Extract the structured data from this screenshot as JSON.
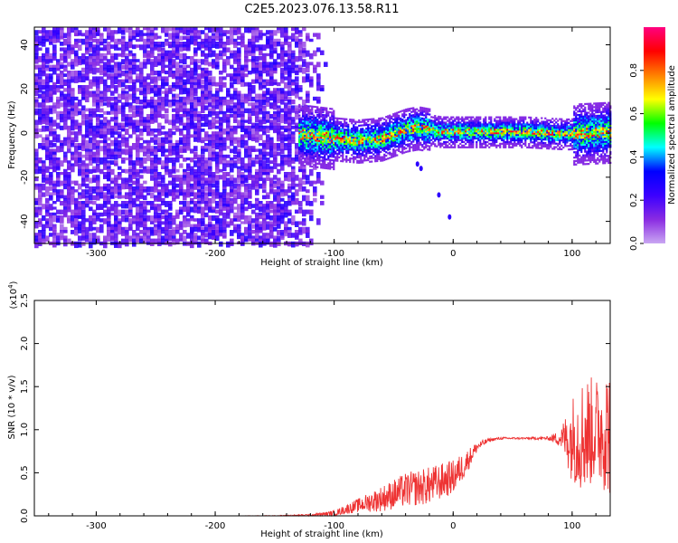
{
  "title": "C2E5.2023.076.13.58.R11",
  "chart_data": [
    {
      "type": "heatmap",
      "title": "",
      "xlabel": "Height of straight line (km)",
      "ylabel": "Frequency (Hz)",
      "xlim": [
        -352,
        132
      ],
      "ylim": [
        -50,
        48
      ],
      "xticks": [
        -300,
        -200,
        -100,
        0,
        100
      ],
      "yticks": [
        -40,
        -20,
        0,
        20,
        40
      ],
      "xticklabels": [
        "-300",
        "-200",
        "-100",
        "0",
        "100"
      ],
      "yticklabels": [
        "-40",
        "-20",
        "0",
        "20",
        "40"
      ],
      "colorbar": {
        "label": "Normalized spectral amplitude",
        "range": [
          0.0,
          1.0
        ],
        "ticks": [
          0.0,
          0.2,
          0.4,
          0.6,
          0.8
        ],
        "ticklabels": [
          "0.0",
          "0.2",
          "0.4",
          "0.6",
          "0.8"
        ],
        "colors": [
          "#c9a6f2",
          "#8a2be2",
          "#3b00ff",
          "#0000ff",
          "#00ffff",
          "#00ff00",
          "#ffff00",
          "#ff8000",
          "#ff0000",
          "#ff0080"
        ]
      },
      "noise_region_x": [
        -352,
        -108
      ],
      "noise_level": 0.15,
      "signal_region_x": [
        -130,
        132
      ],
      "signal_track": [
        [
          -130,
          0
        ],
        [
          -100,
          -2
        ],
        [
          -80,
          -3
        ],
        [
          -60,
          -2
        ],
        [
          -40,
          2
        ],
        [
          -30,
          3
        ],
        [
          -20,
          2
        ],
        [
          -10,
          1
        ],
        [
          0,
          1
        ],
        [
          20,
          1
        ],
        [
          60,
          1
        ],
        [
          95,
          0
        ],
        [
          132,
          1
        ]
      ],
      "signal_peak_amplitude": 0.95,
      "scatter_blobs": [
        [
          -30,
          -14
        ],
        [
          -27,
          -16
        ],
        [
          -12,
          -28
        ],
        [
          -3,
          -38
        ]
      ]
    },
    {
      "type": "line",
      "title": "",
      "xlabel": "Height of straight line (km)",
      "ylabel": "SNR (10 * v/v)",
      "y_multiplier_label": "(x10",
      "y_multiplier_exponent": "4",
      "xlim": [
        -352,
        132
      ],
      "ylim": [
        0.0,
        2.5
      ],
      "xticks": [
        -300,
        -200,
        -100,
        0,
        100
      ],
      "yticks": [
        0.0,
        0.5,
        1.0,
        1.5,
        2.0,
        2.5
      ],
      "xticklabels": [
        "-300",
        "-200",
        "-100",
        "0",
        "100"
      ],
      "yticklabels": [
        "0.0",
        "0.5",
        "1.0",
        "1.5",
        "2.0",
        "2.5"
      ],
      "series": [
        {
          "name": "SNR",
          "color": "#ee3333",
          "x": [
            -352,
            -300,
            -250,
            -200,
            -150,
            -120,
            -100,
            -80,
            -60,
            -40,
            -20,
            0,
            10,
            20,
            30,
            40,
            60,
            80,
            90,
            100,
            110,
            120,
            132
          ],
          "y": [
            0.0,
            0.0,
            0.0,
            0.0,
            0.0,
            0.01,
            0.03,
            0.12,
            0.2,
            0.3,
            0.35,
            0.45,
            0.6,
            0.8,
            0.88,
            0.9,
            0.9,
            0.9,
            0.9,
            0.9,
            0.95,
            1.0,
            1.0
          ],
          "spread": [
            0.0,
            0.0,
            0.0,
            0.0,
            0.005,
            0.01,
            0.03,
            0.08,
            0.15,
            0.2,
            0.22,
            0.2,
            0.15,
            0.06,
            0.02,
            0.015,
            0.01,
            0.02,
            0.1,
            0.5,
            0.7,
            0.6,
            0.8
          ]
        }
      ]
    }
  ]
}
